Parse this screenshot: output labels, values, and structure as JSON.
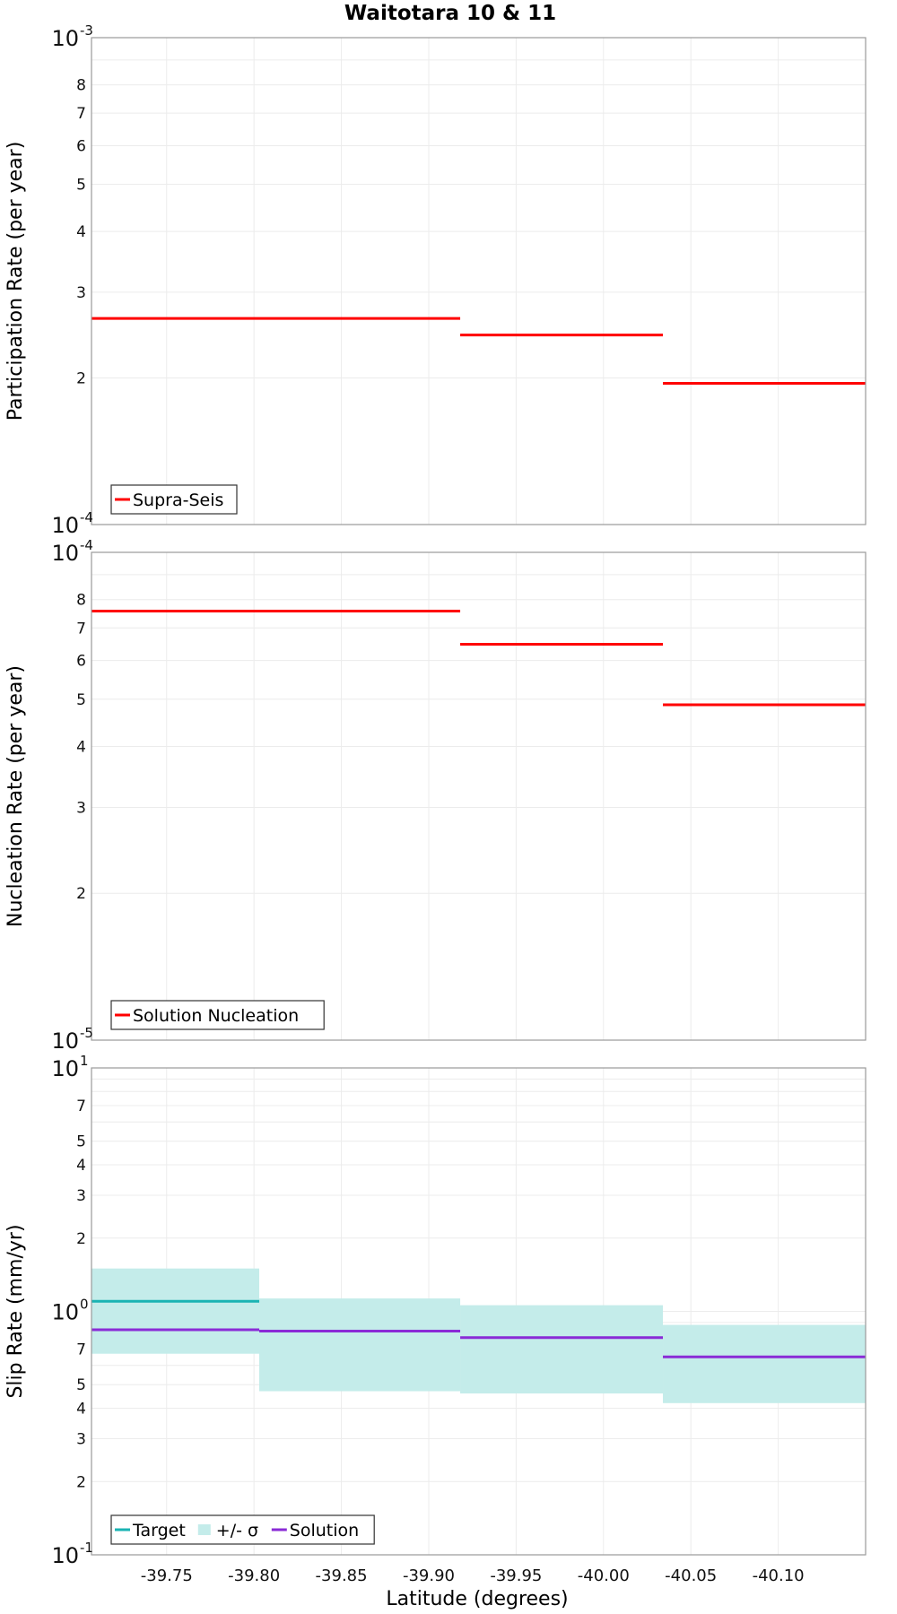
{
  "figure": {
    "title": "Waitotara 10 & 11",
    "xlabel": "Latitude (degrees)"
  },
  "chart_data": [
    {
      "type": "line",
      "name": "participation",
      "title": "Waitotara 10 & 11",
      "xlabel": "Latitude (degrees)",
      "ylabel": "Participation Rate (per year)",
      "yscale": "log",
      "ylim": [
        0.0001,
        0.001
      ],
      "y_tick_labels": {
        "major_low": "10",
        "major_low_exp": "-4",
        "major_high": "10",
        "major_high_exp": "-3",
        "minor": [
          "2",
          "3",
          "4",
          "5",
          "6",
          "7",
          "8"
        ]
      },
      "legend": [
        "Supra-Seis"
      ],
      "legend_position": "bottom-left",
      "series": [
        {
          "name": "Supra-Seis",
          "color": "#ff0000",
          "kind": "step",
          "segments": [
            [
              -39.707,
              -39.918,
              0.000265
            ],
            [
              -39.918,
              -40.034,
              0.000245
            ],
            [
              -40.034,
              -40.15,
              0.000195
            ]
          ]
        }
      ]
    },
    {
      "type": "line",
      "name": "nucleation",
      "ylabel": "Nucleation Rate (per year)",
      "yscale": "log",
      "ylim": [
        1e-05,
        0.0001
      ],
      "y_tick_labels": {
        "major_low": "10",
        "major_low_exp": "-5",
        "major_high": "10",
        "major_high_exp": "-4",
        "minor": [
          "2",
          "3",
          "4",
          "5",
          "6",
          "7",
          "8"
        ]
      },
      "legend": [
        "Solution Nucleation"
      ],
      "legend_position": "bottom-left",
      "series": [
        {
          "name": "Solution Nucleation",
          "color": "#ff0000",
          "kind": "step",
          "segments": [
            [
              -39.707,
              -39.918,
              7.58e-05
            ],
            [
              -39.918,
              -40.034,
              6.48e-05
            ],
            [
              -40.034,
              -40.15,
              4.87e-05
            ]
          ]
        }
      ]
    },
    {
      "type": "line",
      "name": "slip",
      "ylabel": "Slip Rate (mm/yr)",
      "yscale": "log",
      "ylim": [
        0.1,
        10
      ],
      "y_tick_labels": {
        "major_low": "10",
        "major_low_exp": "-1",
        "major_mid": "10",
        "major_mid_exp": "0",
        "major_high": "10",
        "major_high_exp": "1",
        "minor": [
          "2",
          "3",
          "4",
          "5",
          "7",
          "2",
          "3",
          "4",
          "5",
          "7"
        ]
      },
      "legend": [
        "Target",
        "+/- σ",
        "Solution"
      ],
      "legend_position": "bottom-left",
      "series": [
        {
          "name": "Target",
          "color": "#1ab3b3",
          "kind": "step",
          "segments": [
            [
              -39.707,
              -39.803,
              1.1
            ]
          ]
        },
        {
          "name": "+/- σ",
          "color": "#c4ecea",
          "kind": "band",
          "segments": [
            [
              -39.707,
              -39.803,
              0.67,
              1.5
            ],
            [
              -39.803,
              -39.918,
              0.47,
              1.13
            ],
            [
              -39.918,
              -40.034,
              0.46,
              1.06
            ],
            [
              -40.034,
              -40.15,
              0.42,
              0.88
            ]
          ]
        },
        {
          "name": "Solution",
          "color": "#8a2bd6",
          "kind": "step",
          "segments": [
            [
              -39.707,
              -39.803,
              0.84
            ],
            [
              -39.803,
              -39.918,
              0.83
            ],
            [
              -39.918,
              -40.034,
              0.78
            ],
            [
              -40.034,
              -40.15,
              0.65
            ]
          ]
        }
      ]
    }
  ],
  "x_axis": {
    "xlim": [
      -39.707,
      -40.15
    ],
    "ticks": [
      -39.75,
      -39.8,
      -39.85,
      -39.9,
      -39.95,
      -40.0,
      -40.05,
      -40.1
    ],
    "tick_labels": [
      "-39.75",
      "-39.80",
      "-39.85",
      "-39.90",
      "-39.95",
      "-40.00",
      "-40.05",
      "-40.10"
    ]
  }
}
